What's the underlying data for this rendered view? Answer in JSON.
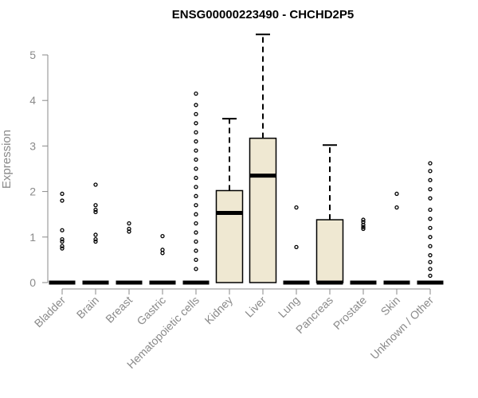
{
  "chart_data": {
    "type": "box",
    "title": "ENSG00000223490 - CHCHD2P5",
    "xlabel": "",
    "ylabel": "Expression",
    "ylim": [
      0,
      5.5
    ],
    "yticks": [
      0,
      1,
      2,
      3,
      4,
      5
    ],
    "box_fill": "#efe8d2",
    "categories": [
      "Bladder",
      "Brain",
      "Breast",
      "Gastric",
      "Hematopoietic cells",
      "Kidney",
      "Liver",
      "Lung",
      "Pancreas",
      "Prostate",
      "Skin",
      "Unknown / Other"
    ],
    "boxes": [
      {
        "q1": 0,
        "median": 0,
        "q3": 0,
        "whisker_low": 0,
        "whisker_high": 0,
        "outliers": [
          0.75,
          0.8,
          0.9,
          0.95,
          1.15,
          1.8,
          1.95
        ]
      },
      {
        "q1": 0,
        "median": 0,
        "q3": 0,
        "whisker_low": 0,
        "whisker_high": 0,
        "outliers": [
          0.9,
          0.95,
          1.05,
          1.55,
          1.6,
          1.7,
          2.15
        ]
      },
      {
        "q1": 0,
        "median": 0,
        "q3": 0,
        "whisker_low": 0,
        "whisker_high": 0,
        "outliers": [
          1.12,
          1.18,
          1.3
        ]
      },
      {
        "q1": 0,
        "median": 0,
        "q3": 0,
        "whisker_low": 0,
        "whisker_high": 0,
        "outliers": [
          0.65,
          0.72,
          1.02
        ]
      },
      {
        "q1": 0,
        "median": 0,
        "q3": 0,
        "whisker_low": 0,
        "whisker_high": 0,
        "outliers": [
          0.3,
          0.5,
          0.7,
          0.9,
          1.1,
          1.3,
          1.5,
          1.7,
          1.9,
          2.1,
          2.3,
          2.5,
          2.7,
          2.9,
          3.1,
          3.3,
          3.5,
          3.7,
          3.9,
          4.15
        ]
      },
      {
        "q1": 0,
        "median": 1.53,
        "q3": 2.02,
        "whisker_low": 0,
        "whisker_high": 3.6,
        "outliers": []
      },
      {
        "q1": 0,
        "median": 2.35,
        "q3": 3.17,
        "whisker_low": 0,
        "whisker_high": 5.45,
        "outliers": []
      },
      {
        "q1": 0,
        "median": 0,
        "q3": 0,
        "whisker_low": 0,
        "whisker_high": 0,
        "outliers": [
          0.78,
          1.65
        ]
      },
      {
        "q1": 0,
        "median": 0,
        "q3": 1.38,
        "whisker_low": 0,
        "whisker_high": 3.02,
        "outliers": []
      },
      {
        "q1": 0,
        "median": 0,
        "q3": 0,
        "whisker_low": 0,
        "whisker_high": 0,
        "outliers": [
          1.18,
          1.22,
          1.27,
          1.33,
          1.38
        ]
      },
      {
        "q1": 0,
        "median": 0,
        "q3": 0,
        "whisker_low": 0,
        "whisker_high": 0,
        "outliers": [
          1.65,
          1.95
        ]
      },
      {
        "q1": 0,
        "median": 0,
        "q3": 0,
        "whisker_low": 0,
        "whisker_high": 0,
        "outliers": [
          0.15,
          0.3,
          0.45,
          0.6,
          0.8,
          1.0,
          1.2,
          1.4,
          1.6,
          1.85,
          2.05,
          2.25,
          2.45,
          2.62
        ]
      }
    ]
  }
}
